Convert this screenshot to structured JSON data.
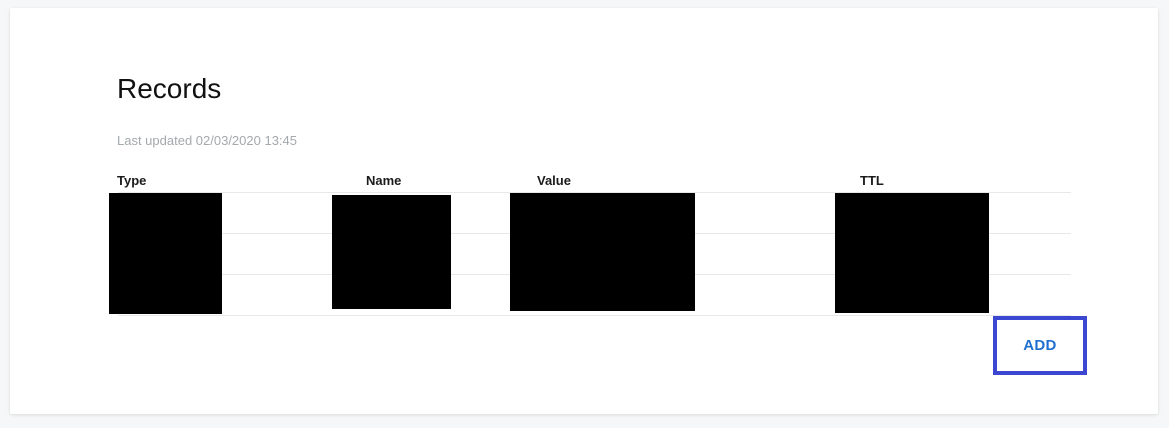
{
  "card": {
    "title": "Records",
    "last_updated": "Last updated 02/03/2020 13:45"
  },
  "table": {
    "columns": [
      "Type",
      "Name",
      "Value",
      "TTL"
    ]
  },
  "actions": {
    "add_label": "ADD"
  }
}
